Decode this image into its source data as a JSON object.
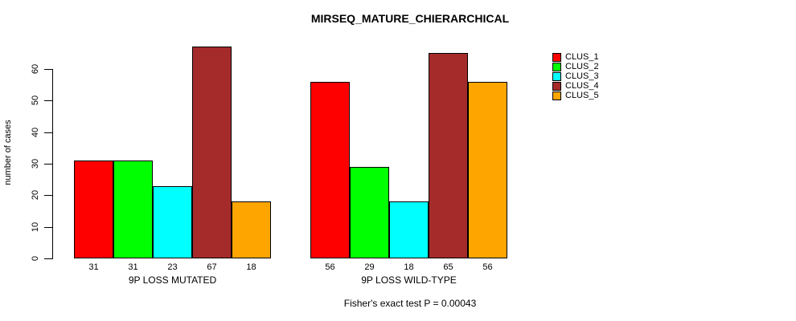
{
  "title": "MIRSEQ_MATURE_CHIERARCHICAL",
  "chart_data": {
    "type": "bar",
    "title": "MIRSEQ_MATURE_CHIERARCHICAL",
    "ylabel": "number of cases",
    "xlabel": "",
    "ylim": [
      0,
      67
    ],
    "yticks": [
      0,
      10,
      20,
      30,
      40,
      50,
      60
    ],
    "grid": false,
    "legend_position": "top-right",
    "categories": [
      "9P LOSS MUTATED",
      "9P LOSS WILD-TYPE"
    ],
    "series": [
      {
        "name": "CLUS_1",
        "color": "#FF0000",
        "values": [
          31,
          56
        ]
      },
      {
        "name": "CLUS_2",
        "color": "#00FF00",
        "values": [
          31,
          29
        ]
      },
      {
        "name": "CLUS_3",
        "color": "#00FFFF",
        "values": [
          23,
          18
        ]
      },
      {
        "name": "CLUS_4",
        "color": "#A52A2A",
        "values": [
          67,
          65
        ]
      },
      {
        "name": "CLUS_5",
        "color": "#FFA500",
        "values": [
          18,
          56
        ]
      }
    ],
    "bar_value_labels": [
      [
        "31",
        "31",
        "23",
        "67",
        "18"
      ],
      [
        "56",
        "29",
        "18",
        "65",
        "56"
      ]
    ],
    "annotation": "Fisher's exact test P = 0.00043"
  }
}
